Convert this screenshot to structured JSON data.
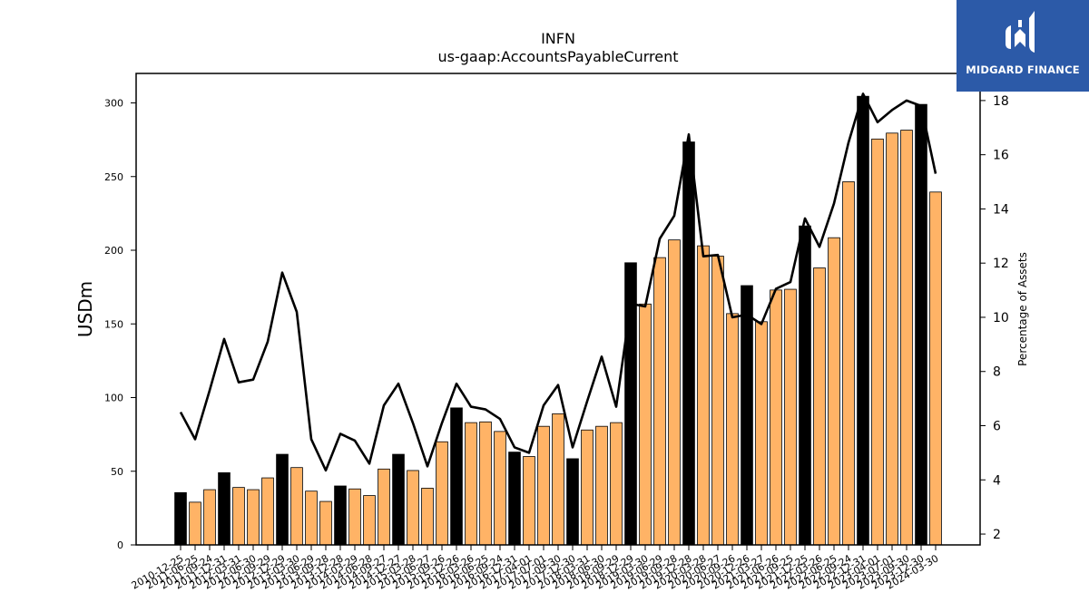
{
  "chart_data": {
    "type": "bar",
    "title": "INFN",
    "subtitle": "us-gaap:AccountsPayableCurrent",
    "ylabel": "USDm",
    "y2label": "Percentage of Assets",
    "ylim": [
      0,
      320
    ],
    "y2lim": [
      1.6,
      19.0
    ],
    "yticks": [
      0,
      50,
      100,
      150,
      200,
      250,
      300
    ],
    "y2ticks": [
      2,
      4,
      6,
      8,
      10,
      12,
      14,
      16,
      18
    ],
    "colors": {
      "annual": "#000000",
      "quarterly": "#ffb366",
      "line": "#000000"
    },
    "categories": [
      "2010-12-25",
      "2011-06-25",
      "2011-09-24",
      "2011-12-31",
      "2012-03-31",
      "2012-06-30",
      "2012-09-29",
      "2012-12-29",
      "2013-03-30",
      "2013-06-29",
      "2013-09-28",
      "2013-12-28",
      "2014-03-29",
      "2014-06-28",
      "2014-09-27",
      "2014-12-27",
      "2015-03-28",
      "2015-06-27",
      "2015-09-26",
      "2015-12-26",
      "2016-03-26",
      "2016-06-25",
      "2016-09-24",
      "2016-12-31",
      "2017-04-01",
      "2017-07-01",
      "2017-09-30",
      "2017-12-30",
      "2018-03-31",
      "2018-06-30",
      "2018-09-29",
      "2018-12-29",
      "2019-03-30",
      "2019-06-29",
      "2019-09-28",
      "2019-12-28",
      "2020-03-28",
      "2020-06-27",
      "2020-09-26",
      "2020-12-26",
      "2021-03-27",
      "2021-06-26",
      "2021-09-25",
      "2021-12-25",
      "2022-03-26",
      "2022-06-25",
      "2022-09-24",
      "2022-12-31",
      "2023-04-01",
      "2023-07-01",
      "2023-09-30",
      "2023-12-30",
      "2024-03-30"
    ],
    "bar_values": [
      35.5,
      29,
      37.5,
      49,
      39,
      37.5,
      45.5,
      61.5,
      52.5,
      36.5,
      29.5,
      40,
      38,
      33.5,
      51.5,
      61.5,
      50.5,
      38.5,
      70,
      93,
      83,
      83.5,
      77,
      63,
      60,
      80.5,
      89,
      58.5,
      78,
      80.5,
      83,
      191.5,
      163.5,
      195,
      207,
      273.5,
      203,
      196,
      157,
      176,
      151.5,
      173,
      173.5,
      216.5,
      188,
      208.5,
      246.5,
      304.5,
      275.5,
      279.5,
      281.5,
      299,
      239.5
    ],
    "bar_kind": [
      "annual",
      "quarterly",
      "quarterly",
      "annual",
      "quarterly",
      "quarterly",
      "quarterly",
      "annual",
      "quarterly",
      "quarterly",
      "quarterly",
      "annual",
      "quarterly",
      "quarterly",
      "quarterly",
      "annual",
      "quarterly",
      "quarterly",
      "quarterly",
      "annual",
      "quarterly",
      "quarterly",
      "quarterly",
      "annual",
      "quarterly",
      "quarterly",
      "quarterly",
      "annual",
      "quarterly",
      "quarterly",
      "quarterly",
      "annual",
      "quarterly",
      "quarterly",
      "quarterly",
      "annual",
      "quarterly",
      "quarterly",
      "quarterly",
      "annual",
      "quarterly",
      "quarterly",
      "quarterly",
      "annual",
      "quarterly",
      "quarterly",
      "quarterly",
      "annual",
      "quarterly",
      "quarterly",
      "quarterly",
      "annual",
      "quarterly"
    ],
    "line_values": [
      6.5,
      5.5,
      7.3,
      9.2,
      7.6,
      7.7,
      9.1,
      11.65,
      10.2,
      5.5,
      4.35,
      5.7,
      5.45,
      4.6,
      6.75,
      7.55,
      6.1,
      4.5,
      6.1,
      7.55,
      6.7,
      6.6,
      6.25,
      5.2,
      5.0,
      6.75,
      7.5,
      5.2,
      6.9,
      8.55,
      6.7,
      10.5,
      10.4,
      12.9,
      13.75,
      16.75,
      12.25,
      12.3,
      10.0,
      10.1,
      9.75,
      11.05,
      11.3,
      13.65,
      12.6,
      14.2,
      16.45,
      18.25,
      17.2,
      17.65,
      18.0,
      17.8,
      15.3
    ]
  },
  "logo": {
    "text": "MIDGARD FINANCE"
  }
}
